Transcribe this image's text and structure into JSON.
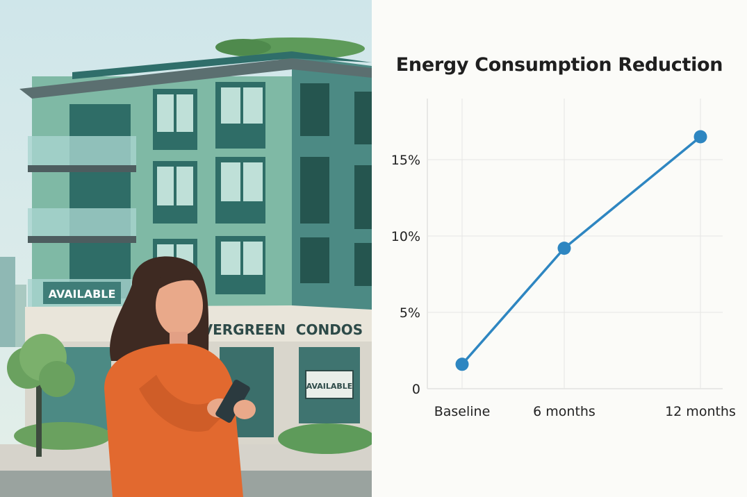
{
  "illustration": {
    "sign_available_balcony": "AVAILABLE",
    "storefront_word_1": "EVERGREEN",
    "storefront_word_2": "CONDOS",
    "sign_available_window": "AVAILABLE"
  },
  "chart_data": {
    "type": "line",
    "title": "Energy Consumption Reduction",
    "categories": [
      "Baseline",
      "6 months",
      "12 months"
    ],
    "series": [
      {
        "values": [
          1.6,
          9.2,
          16.5
        ]
      }
    ],
    "y_ticks": [
      "0",
      "5%",
      "10%",
      "15%"
    ],
    "y_tick_values": [
      0,
      5,
      10,
      15
    ],
    "ylim": [
      0,
      19
    ],
    "grid": true,
    "line_color": "#2e86c1",
    "point_color": "#2e86c1"
  }
}
